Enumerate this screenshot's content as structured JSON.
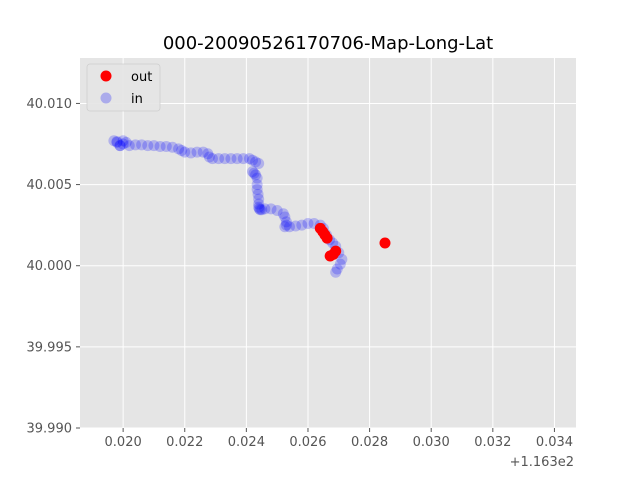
{
  "chart_data": {
    "type": "scatter",
    "title": "000-20090526170706-Map-Long-Lat",
    "xlabel": "",
    "ylabel": "",
    "x_offset_label": "+1.163e2",
    "xlim": [
      0.0186,
      0.0347
    ],
    "ylim": [
      39.99,
      40.0128
    ],
    "x_ticks": [
      0.02,
      0.022,
      0.024,
      0.026,
      0.028,
      0.03,
      0.032,
      0.034
    ],
    "x_tick_labels": [
      "0.020",
      "0.022",
      "0.024",
      "0.026",
      "0.028",
      "0.030",
      "0.032",
      "0.034"
    ],
    "y_ticks": [
      39.99,
      39.995,
      40.0,
      40.005,
      40.01
    ],
    "y_tick_labels": [
      "39.990",
      "39.995",
      "40.000",
      "40.005",
      "40.010"
    ],
    "grid": true,
    "legend_position": "top-left",
    "series": [
      {
        "name": "out",
        "color": "#ff0000",
        "x": [
          0.0264,
          0.02648,
          0.02655,
          0.02662,
          0.0285,
          0.02672,
          0.0269,
          0.02682
        ],
        "y": [
          40.0023,
          40.0021,
          40.0019,
          40.0017,
          40.0014,
          40.0006,
          40.0009,
          40.0007
        ]
      },
      {
        "name": "in",
        "color": "#0000ff",
        "x": [
          0.0197,
          0.0198,
          0.0199,
          0.02,
          0.0201,
          0.02,
          0.0198,
          0.0199,
          0.0202,
          0.0204,
          0.0206,
          0.0208,
          0.021,
          0.0212,
          0.0214,
          0.0216,
          0.0218,
          0.0219,
          0.022,
          0.0222,
          0.0224,
          0.0226,
          0.02275,
          0.0228,
          0.0229,
          0.0231,
          0.0233,
          0.0235,
          0.0237,
          0.0239,
          0.0241,
          0.0242,
          0.0243,
          0.0244,
          0.0242,
          0.02425,
          0.0243,
          0.02435,
          0.02435,
          0.02435,
          0.02438,
          0.0244,
          0.0244,
          0.0244,
          0.02442,
          0.02445,
          0.0245,
          0.0246,
          0.0248,
          0.025,
          0.0252,
          0.02525,
          0.0253,
          0.0253,
          0.02525,
          0.0254,
          0.0256,
          0.0258,
          0.026,
          0.0262,
          0.0264,
          0.0265,
          0.0266,
          0.0267,
          0.0268,
          0.0269,
          0.027,
          0.0271,
          0.02705,
          0.02695,
          0.0269
        ],
        "y": [
          40.0077,
          40.0076,
          40.0074,
          40.0075,
          40.0076,
          40.0077,
          40.00765,
          40.0074,
          40.0074,
          40.00745,
          40.00745,
          40.0074,
          40.0074,
          40.00735,
          40.00735,
          40.0073,
          40.0072,
          40.0071,
          40.007,
          40.00695,
          40.007,
          40.007,
          40.0069,
          40.0067,
          40.0066,
          40.0066,
          40.0066,
          40.0066,
          40.0066,
          40.0066,
          40.0066,
          40.0065,
          40.0064,
          40.0063,
          40.0058,
          40.0057,
          40.0056,
          40.0054,
          40.005,
          40.0047,
          40.0044,
          40.0041,
          40.0038,
          40.0036,
          40.0035,
          40.00345,
          40.00345,
          40.0035,
          40.0035,
          40.0034,
          40.0032,
          40.003,
          40.0027,
          40.0025,
          40.0024,
          40.0024,
          40.00245,
          40.0025,
          40.0026,
          40.0026,
          40.0025,
          40.0023,
          40.0019,
          40.0016,
          40.0014,
          40.0012,
          40.0008,
          40.0004,
          40.0001,
          39.9998,
          39.9996
        ]
      }
    ]
  }
}
